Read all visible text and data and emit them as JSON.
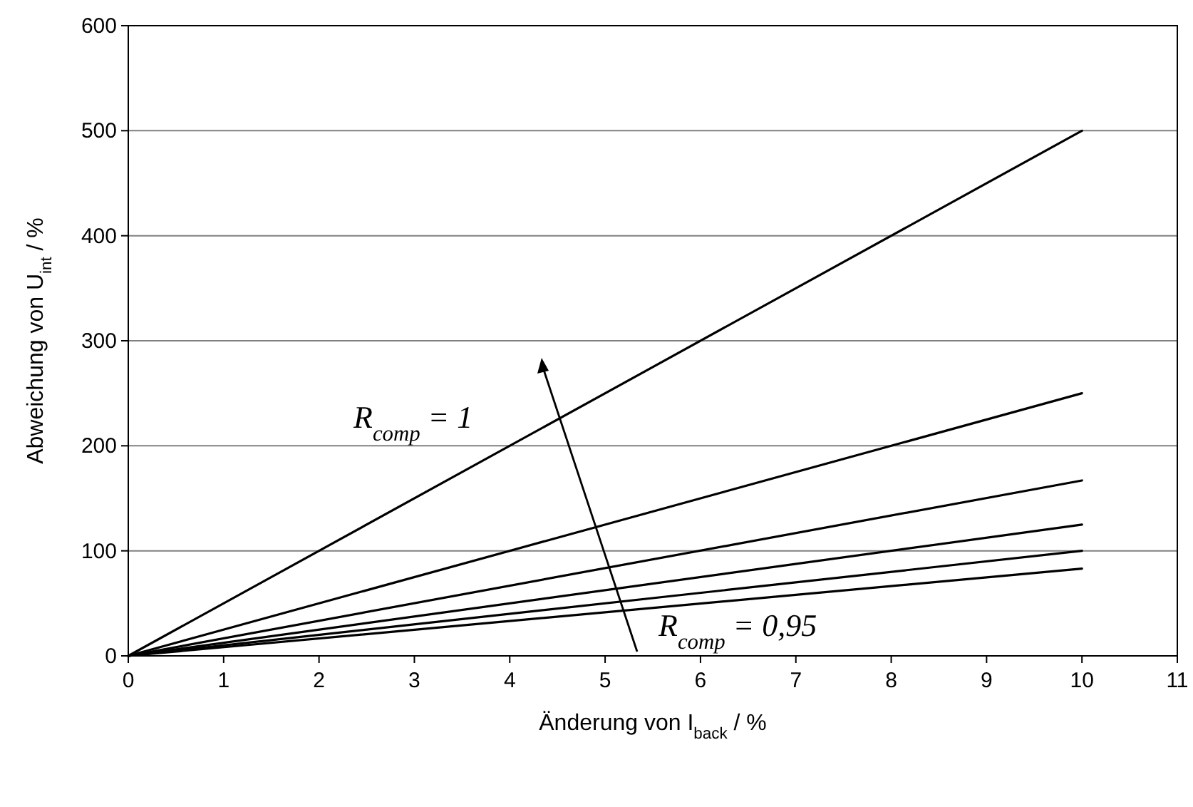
{
  "chart_data": {
    "type": "line",
    "xlabel": "Änderung von I$_{back}$ / %",
    "ylabel": "Abweichung von U$_{int}$ / %",
    "xlim": [
      0,
      11
    ],
    "xticks": [
      0,
      1,
      2,
      3,
      4,
      5,
      6,
      7,
      8,
      9,
      10,
      11
    ],
    "ylim": [
      0,
      600
    ],
    "yticks": [
      0,
      100,
      200,
      300,
      400,
      500,
      600
    ],
    "grid": "y",
    "marker": "none",
    "line_style": "solid",
    "annotations": [
      "R$_{comp}$ = 1",
      "R$_{comp}$ = 0,95"
    ],
    "x": [
      0,
      10
    ],
    "series": [
      {
        "color": "#000000",
        "values": [
          0,
          500
        ]
      },
      {
        "color": "#000000",
        "values": [
          0,
          250
        ]
      },
      {
        "color": "#000000",
        "values": [
          0,
          167
        ]
      },
      {
        "color": "#000000",
        "values": [
          0,
          125
        ]
      },
      {
        "color": "#000000",
        "values": [
          0,
          100
        ]
      },
      {
        "color": "#000000",
        "values": [
          0,
          83
        ]
      }
    ]
  }
}
